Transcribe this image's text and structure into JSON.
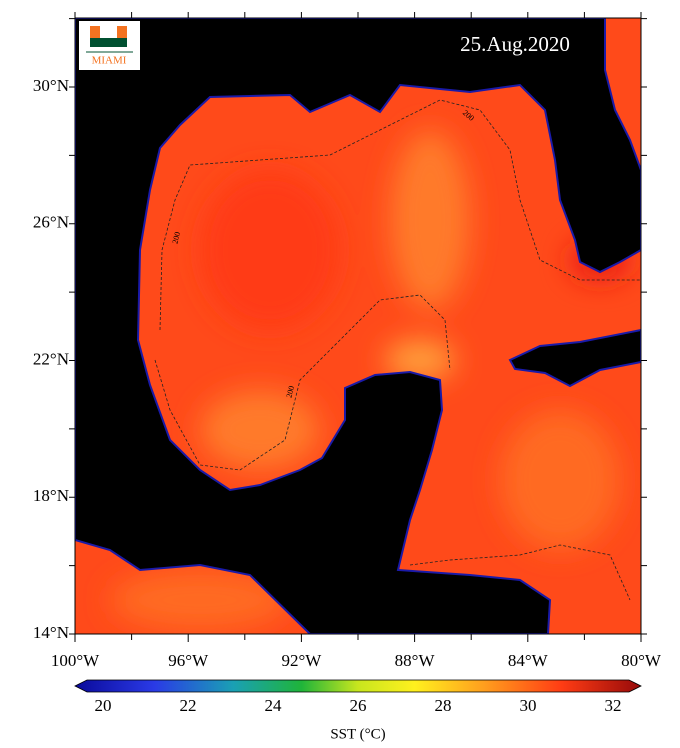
{
  "map": {
    "date": "25.Aug.2020",
    "logo_text": "MIAMI",
    "lat_labels": [
      {
        "value": 30,
        "label": "30°N"
      },
      {
        "value": 26,
        "label": "26°N"
      },
      {
        "value": 22,
        "label": "22°N"
      },
      {
        "value": 18,
        "label": "18°N"
      },
      {
        "value": 14,
        "label": "14°N"
      }
    ],
    "lon_labels": [
      {
        "value": 100,
        "label": "100°W"
      },
      {
        "value": 96,
        "label": "96°W"
      },
      {
        "value": 92,
        "label": "92°W"
      },
      {
        "value": 88,
        "label": "88°W"
      },
      {
        "value": 84,
        "label": "84°W"
      },
      {
        "value": 80,
        "label": "80°W"
      }
    ],
    "contour_labels": [
      "200",
      "200",
      "200"
    ]
  },
  "colorbar": {
    "label": "SST (°C)",
    "ticks": [
      20,
      22,
      24,
      26,
      28,
      30,
      32
    ]
  }
}
